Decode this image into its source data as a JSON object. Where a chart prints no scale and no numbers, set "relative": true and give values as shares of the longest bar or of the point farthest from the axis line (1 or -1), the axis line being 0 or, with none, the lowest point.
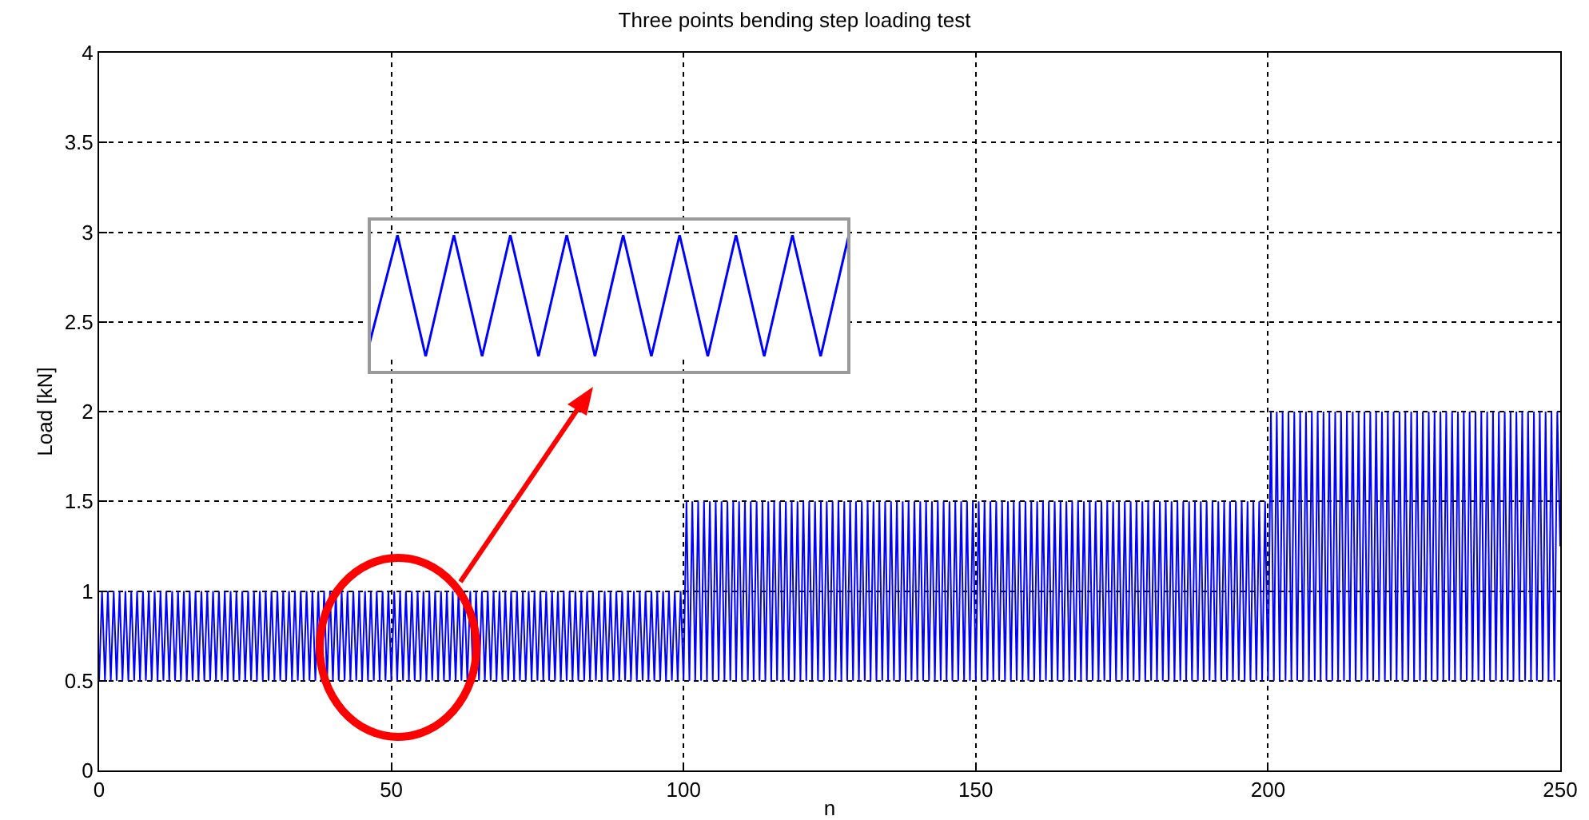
{
  "chart_data": [
    {
      "type": "line",
      "title": "Three points bending step loading test",
      "xlabel": "n",
      "ylabel": "Load [kN]",
      "xlim": [
        0,
        250
      ],
      "xticks": [
        0,
        50,
        100,
        150,
        200,
        250
      ],
      "ylim": [
        0,
        4
      ],
      "yticks": [
        0,
        0.5,
        1,
        1.5,
        2,
        2.5,
        3,
        3.5,
        4
      ],
      "grid": true,
      "marker": "none",
      "line_style": "solid",
      "series": [
        {
          "color": "#0000ff",
          "x": [
            0,
            0.5,
            1,
            1.5,
            2,
            2.5,
            3,
            3.5,
            4,
            4.5,
            5,
            5.5,
            6,
            6.5,
            7,
            7.5,
            8,
            8.5,
            9,
            9.5,
            10,
            10.5,
            11,
            11.5,
            12,
            12.5,
            13,
            13.5,
            14,
            14.5,
            15,
            15.5,
            16,
            16.5,
            17,
            17.5,
            18,
            18.5,
            19,
            19.5,
            20,
            20.5,
            21,
            21.5,
            22,
            22.5,
            23,
            23.5,
            24,
            24.5,
            25,
            25.5,
            26,
            26.5,
            27,
            27.5,
            28,
            28.5,
            29,
            29.5,
            30,
            30.5,
            31,
            31.5,
            32,
            32.5,
            33,
            33.5,
            34,
            34.5,
            35,
            35.5,
            36,
            36.5,
            37,
            37.5,
            38,
            38.5,
            39,
            39.5,
            40,
            40.5,
            41,
            41.5,
            42,
            42.5,
            43,
            43.5,
            44,
            44.5,
            45,
            45.5,
            46,
            46.5,
            47,
            47.5,
            48,
            48.5,
            49,
            49.5,
            50,
            50.5,
            51,
            51.5,
            52,
            52.5,
            53,
            53.5,
            54,
            54.5,
            55,
            55.5,
            56,
            56.5,
            57,
            57.5,
            58,
            58.5,
            59,
            59.5,
            60,
            60.5,
            61,
            61.5,
            62,
            62.5,
            63,
            63.5,
            64,
            64.5,
            65,
            65.5,
            66,
            66.5,
            67,
            67.5,
            68,
            68.5,
            69,
            69.5,
            70,
            70.5,
            71,
            71.5,
            72,
            72.5,
            73,
            73.5,
            74,
            74.5,
            75,
            75.5,
            76,
            76.5,
            77,
            77.5,
            78,
            78.5,
            79,
            79.5,
            80,
            80.5,
            81,
            81.5,
            82,
            82.5,
            83,
            83.5,
            84,
            84.5,
            85,
            85.5,
            86,
            86.5,
            87,
            87.5,
            88,
            88.5,
            89,
            89.5,
            90,
            90.5,
            91,
            91.5,
            92,
            92.5,
            93,
            93.5,
            94,
            94.5,
            95,
            95.5,
            96,
            96.5,
            97,
            97.5,
            98,
            98.5,
            99,
            99.5,
            100,
            100.5,
            101,
            101.5,
            102,
            102.5,
            103,
            103.5,
            104,
            104.5,
            105,
            105.5,
            106,
            106.5,
            107,
            107.5,
            108,
            108.5,
            109,
            109.5,
            110,
            110.5,
            111,
            111.5,
            112,
            112.5,
            113,
            113.5,
            114,
            114.5,
            115,
            115.5,
            116,
            116.5,
            117,
            117.5,
            118,
            118.5,
            119,
            119.5,
            120,
            120.5,
            121,
            121.5,
            122,
            122.5,
            123,
            123.5,
            124,
            124.5,
            125,
            125.5,
            126,
            126.5,
            127,
            127.5,
            128,
            128.5,
            129,
            129.5,
            130,
            130.5,
            131,
            131.5,
            132,
            132.5,
            133,
            133.5,
            134,
            134.5,
            135,
            135.5,
            136,
            136.5,
            137,
            137.5,
            138,
            138.5,
            139,
            139.5,
            140,
            140.5,
            141,
            141.5,
            142,
            142.5,
            143,
            143.5,
            144,
            144.5,
            145,
            145.5,
            146,
            146.5,
            147,
            147.5,
            148,
            148.5,
            149,
            149.5,
            150,
            150.5,
            151,
            151.5,
            152,
            152.5,
            153,
            153.5,
            154,
            154.5,
            155,
            155.5,
            156,
            156.5,
            157,
            157.5,
            158,
            158.5,
            159,
            159.5,
            160,
            160.5,
            161,
            161.5,
            162,
            162.5,
            163,
            163.5,
            164,
            164.5,
            165,
            165.5,
            166,
            166.5,
            167,
            167.5,
            168,
            168.5,
            169,
            169.5,
            170,
            170.5,
            171,
            171.5,
            172,
            172.5,
            173,
            173.5,
            174,
            174.5,
            175,
            175.5,
            176,
            176.5,
            177,
            177.5,
            178,
            178.5,
            179,
            179.5,
            180,
            180.5,
            181,
            181.5,
            182,
            182.5,
            183,
            183.5,
            184,
            184.5,
            185,
            185.5,
            186,
            186.5,
            187,
            187.5,
            188,
            188.5,
            189,
            189.5,
            190,
            190.5,
            191,
            191.5,
            192,
            192.5,
            193,
            193.5,
            194,
            194.5,
            195,
            195.5,
            196,
            196.5,
            197,
            197.5,
            198,
            198.5,
            199,
            199.5,
            200,
            200.5,
            201,
            201.5,
            202,
            202.5,
            203,
            203.5,
            204,
            204.5,
            205,
            205.5,
            206,
            206.5,
            207,
            207.5,
            208,
            208.5,
            209,
            209.5,
            210,
            210.5,
            211,
            211.5,
            212,
            212.5,
            213,
            213.5,
            214,
            214.5,
            215,
            215.5,
            216,
            216.5,
            217,
            217.5,
            218,
            218.5,
            219,
            219.5,
            220,
            220.5,
            221,
            221.5,
            222,
            222.5,
            223,
            223.5,
            224,
            224.5,
            225,
            225.5,
            226,
            226.5,
            227,
            227.5,
            228,
            228.5,
            229,
            229.5,
            230,
            230.5,
            231,
            231.5,
            232,
            232.5,
            233,
            233.5,
            234,
            234.5,
            235,
            235.5,
            236,
            236.5,
            237,
            237.5,
            238,
            238.5,
            239,
            239.5,
            240,
            240.5,
            241,
            241.5,
            242,
            242.5,
            243,
            243.5,
            244,
            244.5,
            245,
            245.5,
            246,
            246.5,
            247,
            247.5,
            248,
            248.5,
            249,
            249.5,
            250
          ],
          "values": [
            0.5,
            1,
            0.5,
            1,
            0.5,
            1,
            0.5,
            1,
            0.5,
            1,
            0.5,
            1,
            0.5,
            1,
            0.5,
            1,
            0.5,
            1,
            0.5,
            1,
            0.5,
            1,
            0.5,
            1,
            0.5,
            1,
            0.5,
            1,
            0.5,
            1,
            0.5,
            1,
            0.5,
            1,
            0.5,
            1,
            0.5,
            1,
            0.5,
            1,
            0.5,
            1,
            0.5,
            1,
            0.5,
            1,
            0.5,
            1,
            0.5,
            1,
            0.5,
            1,
            0.5,
            1,
            0.5,
            1,
            0.5,
            1,
            0.5,
            1,
            0.5,
            1,
            0.5,
            1,
            0.5,
            1,
            0.5,
            1,
            0.5,
            1,
            0.5,
            1,
            0.5,
            1,
            0.5,
            1,
            0.5,
            1,
            0.5,
            1,
            0.5,
            1,
            0.5,
            1,
            0.5,
            1,
            0.5,
            1,
            0.5,
            1,
            0.5,
            1,
            0.5,
            1,
            0.5,
            1,
            0.5,
            1,
            0.5,
            1,
            0.5,
            1,
            0.5,
            1,
            0.5,
            1,
            0.5,
            1,
            0.5,
            1,
            0.5,
            1,
            0.5,
            1,
            0.5,
            1,
            0.5,
            1,
            0.5,
            1,
            0.5,
            1,
            0.5,
            1,
            0.5,
            1,
            0.5,
            1,
            0.5,
            1,
            0.5,
            1,
            0.5,
            1,
            0.5,
            1,
            0.5,
            1,
            0.5,
            1,
            0.5,
            1,
            0.5,
            1,
            0.5,
            1,
            0.5,
            1,
            0.5,
            1,
            0.5,
            1,
            0.5,
            1,
            0.5,
            1,
            0.5,
            1,
            0.5,
            1,
            0.5,
            1,
            0.5,
            1,
            0.5,
            1,
            0.5,
            1,
            0.5,
            1,
            0.5,
            1,
            0.5,
            1,
            0.5,
            1,
            0.5,
            1,
            0.5,
            1,
            0.5,
            1,
            0.5,
            1,
            0.5,
            1,
            0.5,
            1,
            0.5,
            1,
            0.5,
            1,
            0.5,
            1,
            0.5,
            1,
            0.5,
            1,
            0.5,
            1,
            0.5,
            1.5,
            0.5,
            1.5,
            0.5,
            1.5,
            0.5,
            1.5,
            0.5,
            1.5,
            0.5,
            1.5,
            0.5,
            1.5,
            0.5,
            1.5,
            0.5,
            1.5,
            0.5,
            1.5,
            0.5,
            1.5,
            0.5,
            1.5,
            0.5,
            1.5,
            0.5,
            1.5,
            0.5,
            1.5,
            0.5,
            1.5,
            0.5,
            1.5,
            0.5,
            1.5,
            0.5,
            1.5,
            0.5,
            1.5,
            0.5,
            1.5,
            0.5,
            1.5,
            0.5,
            1.5,
            0.5,
            1.5,
            0.5,
            1.5,
            0.5,
            1.5,
            0.5,
            1.5,
            0.5,
            1.5,
            0.5,
            1.5,
            0.5,
            1.5,
            0.5,
            1.5,
            0.5,
            1.5,
            0.5,
            1.5,
            0.5,
            1.5,
            0.5,
            1.5,
            0.5,
            1.5,
            0.5,
            1.5,
            0.5,
            1.5,
            0.5,
            1.5,
            0.5,
            1.5,
            0.5,
            1.5,
            0.5,
            1.5,
            0.5,
            1.5,
            0.5,
            1.5,
            0.5,
            1.5,
            0.5,
            1.5,
            0.5,
            1.5,
            0.5,
            1.5,
            0.5,
            1.5,
            0.5,
            1.5,
            0.5,
            1.5,
            0.5,
            1.5,
            0.5,
            1.5,
            0.5,
            1.5,
            0.5,
            1.5,
            0.5,
            1.5,
            0.5,
            1.5,
            0.5,
            1.5,
            0.5,
            1.5,
            0.5,
            1.5,
            0.5,
            1.5,
            0.5,
            1.5,
            0.5,
            1.5,
            0.5,
            1.5,
            0.5,
            1.5,
            0.5,
            1.5,
            0.5,
            1.5,
            0.5,
            1.5,
            0.5,
            1.5,
            0.5,
            1.5,
            0.5,
            1.5,
            0.5,
            1.5,
            0.5,
            1.5,
            0.5,
            1.5,
            0.5,
            1.5,
            0.5,
            1.5,
            0.5,
            1.5,
            0.5,
            1.5,
            0.5,
            1.5,
            0.5,
            1.5,
            0.5,
            1.5,
            0.5,
            1.5,
            0.5,
            1.5,
            0.5,
            1.5,
            0.5,
            1.5,
            0.5,
            1.5,
            0.5,
            1.5,
            0.5,
            1.5,
            0.5,
            1.5,
            0.5,
            1.5,
            0.5,
            1.5,
            0.5,
            1.5,
            0.5,
            1.5,
            0.5,
            1.5,
            0.5,
            1.5,
            0.5,
            1.5,
            0.5,
            1.5,
            0.5,
            1.5,
            0.5,
            1.5,
            0.5,
            1.5,
            0.5,
            2,
            0.5,
            2,
            0.5,
            2,
            0.5,
            2,
            0.5,
            2,
            0.5,
            2,
            0.5,
            2,
            0.5,
            2,
            0.5,
            2,
            0.5,
            2,
            0.5,
            2,
            0.5,
            2,
            0.5,
            2,
            0.5,
            2,
            0.5,
            2,
            0.5,
            2,
            0.5,
            2,
            0.5,
            2,
            0.5,
            2,
            0.5,
            2,
            0.5,
            2,
            0.5,
            2,
            0.5,
            2,
            0.5,
            2,
            0.5,
            2,
            0.5,
            2,
            0.5,
            2,
            0.5,
            2,
            0.5,
            2,
            0.5,
            2,
            0.5,
            2,
            0.5,
            2,
            0.5,
            2,
            0.5,
            2,
            0.5,
            2,
            0.5,
            2,
            0.5,
            2,
            0.5,
            2,
            0.5,
            2,
            0.5,
            2,
            0.5,
            2,
            0.5,
            2,
            0.5,
            2,
            0.5,
            2,
            0.5,
            2,
            0.5,
            2,
            0.5,
            2,
            0.5,
            2,
            0.5,
            2,
            0.5,
            2,
            1.25
          ]
        }
      ]
    },
    {
      "type": "line",
      "relative": true,
      "categories": [
        null,
        null,
        null,
        null,
        null,
        null,
        null,
        null,
        null,
        null,
        null,
        null,
        null,
        null,
        null,
        null,
        null,
        null
      ],
      "series": [
        {
          "color": "#0000ff",
          "values": [
            0.1,
            1,
            0,
            1,
            0,
            1,
            0,
            1,
            0,
            1,
            0,
            1,
            0,
            1,
            0,
            1,
            0,
            1
          ]
        }
      ]
    }
  ]
}
